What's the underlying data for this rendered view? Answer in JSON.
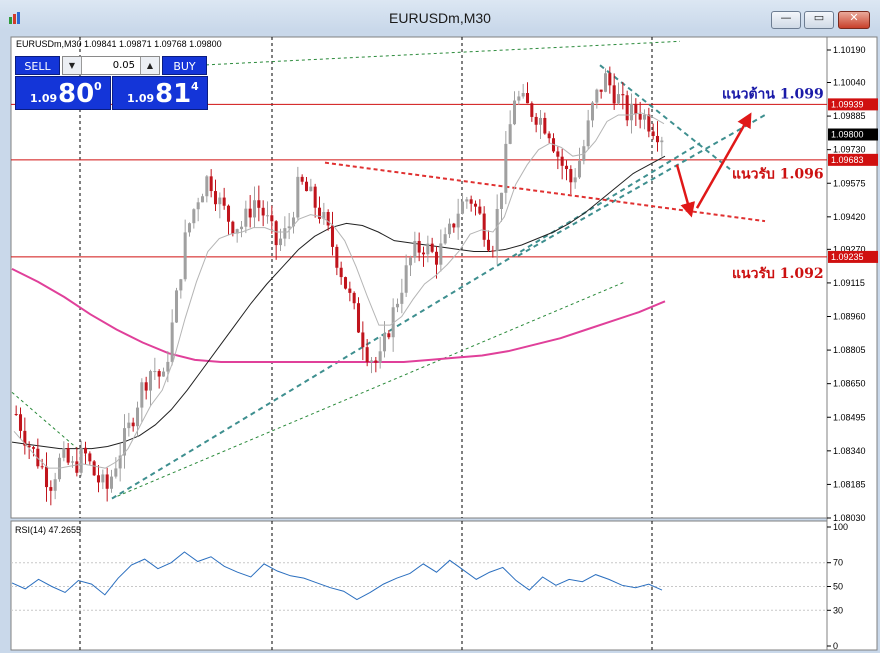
{
  "window": {
    "title": "EURUSDm,M30",
    "buttons": {
      "minimize": "—",
      "restore": "▭",
      "close": "✕"
    }
  },
  "header": {
    "symbol_line": "EURUSDm,M30  1.09841 1.09871 1.09768 1.09800"
  },
  "trade_panel": {
    "sell_label": "SELL",
    "buy_label": "BUY",
    "volume": "0.05",
    "sell_price": {
      "prefix": "1.09",
      "big": "80",
      "sup": "0"
    },
    "buy_price": {
      "prefix": "1.09",
      "big": "81",
      "sup": "4"
    }
  },
  "chart_data": {
    "type": "candlestick",
    "symbol": "EURUSDm",
    "timeframe": "M30",
    "ohlc_header": {
      "open": 1.09841,
      "high": 1.09871,
      "low": 1.09768,
      "close": 1.098
    },
    "ylim": [
      1.0803,
      1.1025
    ],
    "y_ticks": [
      1.1019,
      1.1004,
      1.09885,
      1.0973,
      1.09575,
      1.0942,
      1.0927,
      1.09115,
      1.0896,
      1.08805,
      1.0865,
      1.08495,
      1.0834,
      1.08185,
      1.0803
    ],
    "y_tick_labels": [
      "1.10190",
      "1.10040",
      "1.09885",
      "1.09730",
      "1.09575",
      "1.09420",
      "1.09270",
      "1.09115",
      "1.08960",
      "1.08805",
      "1.08650",
      "1.08495",
      "1.08340",
      "1.08185",
      "1.08030"
    ],
    "price_path": [
      1.0851,
      1.0838,
      1.0829,
      1.0819,
      1.0831,
      1.0826,
      1.0833,
      1.0822,
      1.0816,
      1.0832,
      1.0845,
      1.0862,
      1.0873,
      1.0866,
      1.0899,
      1.0934,
      1.0951,
      1.0961,
      1.0948,
      1.0939,
      1.0938,
      1.095,
      1.0942,
      1.0929,
      1.0936,
      1.0958,
      1.0951,
      1.0942,
      1.0928,
      1.0912,
      1.0895,
      1.088,
      1.0873,
      1.0893,
      1.091,
      1.0925,
      1.0929,
      1.0923,
      1.0931,
      1.0945,
      1.0952,
      1.0941,
      1.0928,
      1.0962,
      1.0998,
      1.0993,
      1.0989,
      1.0983,
      1.0968,
      1.0958,
      1.0972,
      1.0995,
      1.1006,
      1.0998,
      1.0989,
      1.0991,
      1.0985,
      1.098
    ],
    "ma_fast": [
      1.0843,
      1.0837,
      1.0831,
      1.0826,
      1.0826,
      1.0827,
      1.0828,
      1.0827,
      1.0826,
      1.0829,
      1.0835,
      1.0845,
      1.0855,
      1.0862,
      1.0876,
      1.0895,
      1.0912,
      1.0926,
      1.0932,
      1.0934,
      1.0935,
      1.0937,
      1.0937,
      1.0935,
      1.0935,
      1.0941,
      1.0943,
      1.0942,
      1.0938,
      1.0931,
      1.0919,
      1.0905,
      1.0892,
      1.0892,
      1.0896,
      1.0904,
      1.0911,
      1.0915,
      1.092,
      1.0926,
      1.0934,
      1.0936,
      1.0935,
      1.0942,
      1.0957,
      1.0966,
      1.0973,
      1.0976,
      1.0974,
      1.097,
      1.0971,
      1.0977,
      1.0986,
      1.0989,
      1.0989,
      1.099,
      1.0988,
      1.0985
    ],
    "ma_mid": [
      1.0838,
      1.0837,
      1.0836,
      1.0835,
      1.0835,
      1.0835,
      1.0836,
      1.0838,
      1.0841,
      1.0846,
      1.0853,
      1.0862,
      1.0872,
      1.0882,
      1.0892,
      1.0902,
      1.0911,
      1.0919,
      1.0927,
      1.0933,
      1.0937,
      1.0939,
      1.0938,
      1.0935,
      1.0931,
      1.093,
      1.0929,
      1.0928,
      1.0927,
      1.0926,
      1.0926,
      1.0927,
      1.0929,
      1.0932,
      1.0935,
      1.0939,
      1.0944,
      1.095,
      1.0956,
      1.0962,
      1.0966,
      1.097
    ],
    "ma_slow": [
      1.0918,
      1.0912,
      1.0905,
      1.0897,
      1.089,
      1.0884,
      1.0879,
      1.0876,
      1.0875,
      1.0875,
      1.0875,
      1.0875,
      1.0875,
      1.0875,
      1.0875,
      1.0875,
      1.0876,
      1.0877,
      1.0878,
      1.088,
      1.0883,
      1.0886,
      1.089,
      1.0894,
      1.0898,
      1.0903
    ],
    "horizontal_levels": [
      {
        "price": 1.09939,
        "label": "1.09939",
        "color": "#d01010"
      },
      {
        "price": 1.09683,
        "label": "1.09683",
        "color": "#d01010"
      },
      {
        "price": 1.09235,
        "label": "1.09235",
        "color": "#d01010"
      }
    ],
    "current_price": {
      "price": 1.098,
      "label": "1.09800"
    },
    "annotations": [
      {
        "text": "แนวต้าน 1.099",
        "color": "#1a1aa8",
        "price": 1.0999
      },
      {
        "text": "แนวรับ 1.096",
        "color": "#cc1010",
        "price": 1.0962
      },
      {
        "text": "แนวรับ 1.092",
        "color": "#cc1010",
        "price": 1.0916
      }
    ],
    "rsi": {
      "label": "RSI(14) 47.2655",
      "ylim": [
        0,
        100
      ],
      "levels": [
        70,
        50,
        30
      ],
      "tick_labels": [
        "100",
        "70",
        "50",
        "30",
        "0"
      ],
      "values": [
        53,
        48,
        56,
        50,
        45,
        55,
        52,
        43,
        57,
        68,
        73,
        65,
        70,
        79,
        71,
        75,
        67,
        62,
        58,
        69,
        63,
        59,
        57,
        53,
        49,
        46,
        39,
        45,
        52,
        57,
        61,
        69,
        62,
        72,
        64,
        56,
        62,
        66,
        55,
        47,
        58,
        51,
        56,
        54,
        60,
        56,
        51,
        49,
        52,
        47
      ]
    },
    "grid": false,
    "colors": {
      "bg": "#ffffff",
      "bull": "#a0a0a0",
      "bear": "#c0141c",
      "ma_fast": "#b5b5b5",
      "ma_mid": "#222222",
      "ma_slow": "#e0409a",
      "rsi": "#2b6fbf",
      "trend": "#3e8f8f",
      "red_trend": "#e03030"
    }
  }
}
